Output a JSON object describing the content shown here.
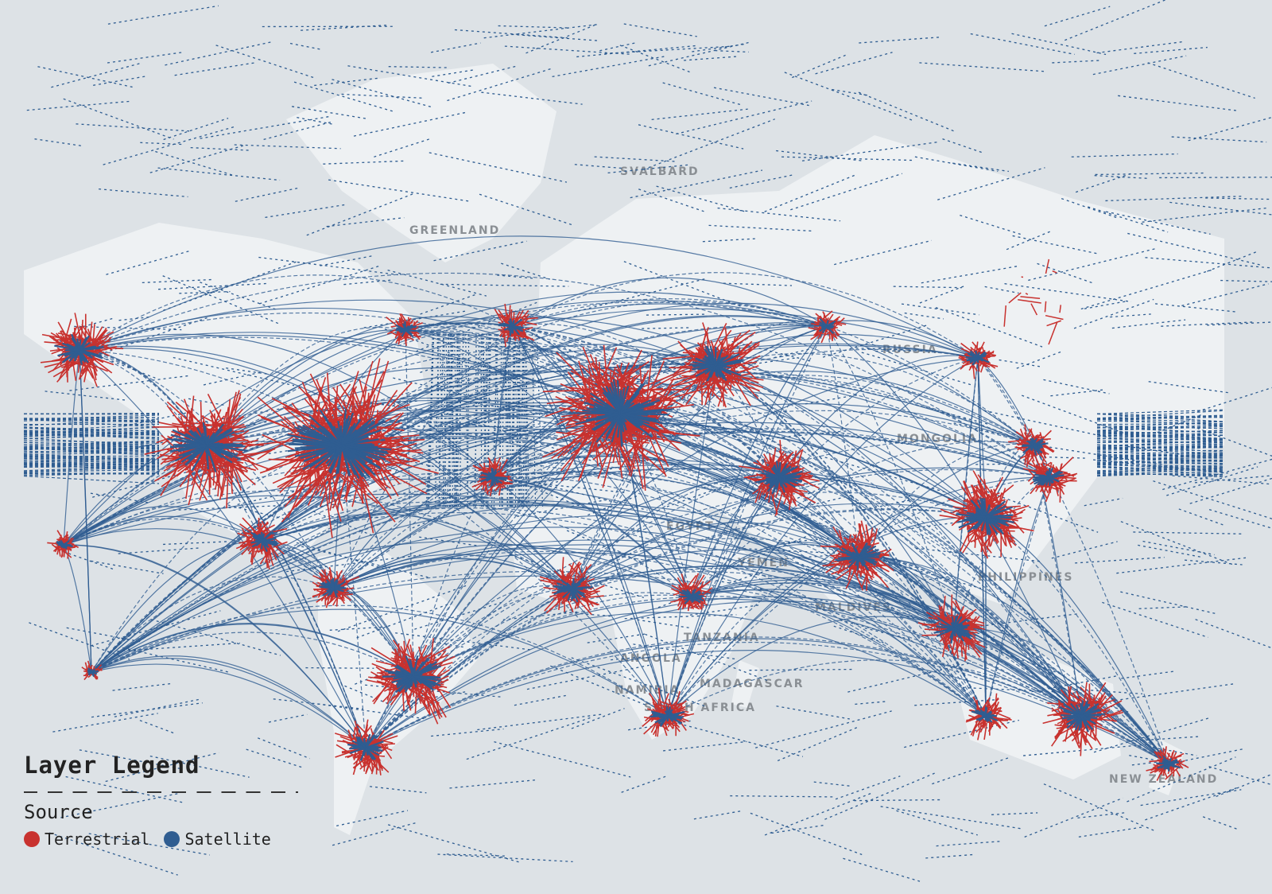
{
  "colors": {
    "background": "#dde2e6",
    "land": "#eef1f3",
    "terrestrial": "#c8322f",
    "satellite": "#2f5d91"
  },
  "map_labels": [
    "SVALBARD",
    "GREENLAND",
    "RUSSIA",
    "MONGOLIA",
    "EGYPT",
    "YEMEN",
    "MALDIVES",
    "PHILIPPINES",
    "TANZANIA",
    "ANGOLA",
    "NAMIBIA",
    "MADAGASCAR",
    "SOUTH AFRICA",
    "NEW ZEALAND"
  ],
  "legend": {
    "title": "Layer Legend",
    "section": "Source",
    "items": [
      {
        "label": "Terrestrial",
        "color": "#c8322f",
        "icon": "circle"
      },
      {
        "label": "Satellite",
        "color": "#2f5d91",
        "icon": "circle"
      }
    ]
  }
}
